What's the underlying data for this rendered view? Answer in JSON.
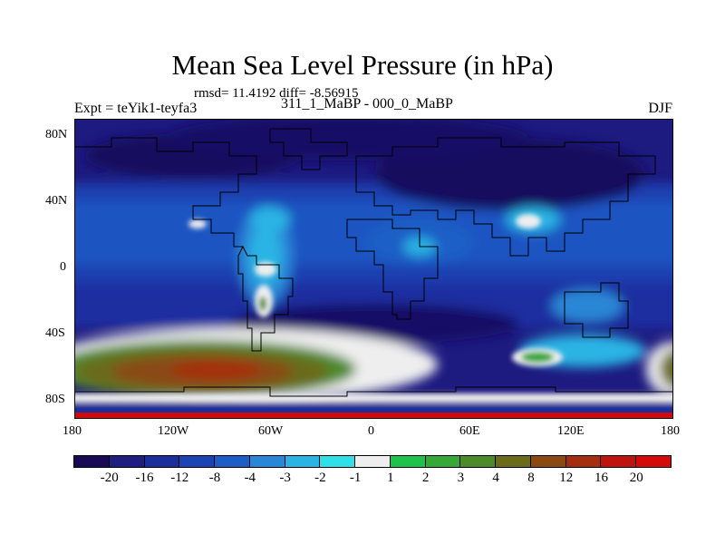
{
  "title": "Mean Sea Level Pressure (in hPa)",
  "stats": "rmsd= 11.4192 diff= -8.56915",
  "expt_label": "Expt = teYik1-teyfa3",
  "comparison": "311_1_MaBP - 000_0_MaBP",
  "season": "DJF",
  "lat_ticks": [
    "80N",
    "40N",
    "0",
    "40S",
    "80S"
  ],
  "lon_ticks": [
    "180",
    "120W",
    "60W",
    "0",
    "60E",
    "120E",
    "180"
  ],
  "colorbar": {
    "labels": [
      "-20",
      "-16",
      "-12",
      "-8",
      "-4",
      "-3",
      "-2",
      "-1",
      "1",
      "2",
      "3",
      "4",
      "8",
      "12",
      "16",
      "20"
    ],
    "colors": [
      "#1a0a55",
      "#1e1e80",
      "#1c2d9c",
      "#1a44b4",
      "#1b5fc6",
      "#2a86d6",
      "#29b4e4",
      "#2fe0e8",
      "#eeeeee",
      "#1fc24a",
      "#35a838",
      "#4d8a2a",
      "#6b6b1a",
      "#8a4a12",
      "#a52d10",
      "#bf140e",
      "#d40a0a"
    ]
  }
}
